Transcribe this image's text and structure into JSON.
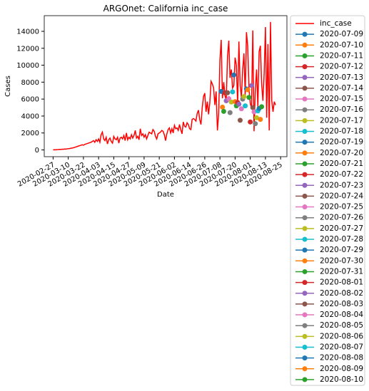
{
  "chart_data": {
    "type": "line",
    "title": "ARGOnet: California inc_case",
    "x_label": "Date",
    "y_label": "Cases",
    "xlim": [
      "2020-02-20",
      "2020-08-30"
    ],
    "xticks": [
      "2020-02-27",
      "2020-03-10",
      "2020-03-22",
      "2020-04-03",
      "2020-04-15",
      "2020-04-27",
      "2020-05-09",
      "2020-05-21",
      "2020-06-02",
      "2020-06-14",
      "2020-06-26",
      "2020-07-08",
      "2020-07-20",
      "2020-08-01",
      "2020-08-13",
      "2020-08-25"
    ],
    "ylim": [
      -800,
      15850
    ],
    "yticks": [
      0,
      2000,
      4000,
      6000,
      8000,
      10000,
      12000,
      14000
    ],
    "grid": false,
    "legend": "outside upper right",
    "series": [
      {
        "name": "inc_case",
        "color": "#ff0000",
        "x": [
          "2020-02-27",
          "2020-02-28",
          "2020-02-29",
          "2020-03-01",
          "2020-03-02",
          "2020-03-03",
          "2020-03-04",
          "2020-03-05",
          "2020-03-06",
          "2020-03-07",
          "2020-03-08",
          "2020-03-09",
          "2020-03-10",
          "2020-03-11",
          "2020-03-12",
          "2020-03-13",
          "2020-03-14",
          "2020-03-15",
          "2020-03-16",
          "2020-03-17",
          "2020-03-18",
          "2020-03-19",
          "2020-03-20",
          "2020-03-21",
          "2020-03-22",
          "2020-03-23",
          "2020-03-24",
          "2020-03-25",
          "2020-03-26",
          "2020-03-27",
          "2020-03-28",
          "2020-03-29",
          "2020-03-30",
          "2020-03-31",
          "2020-04-01",
          "2020-04-02",
          "2020-04-03",
          "2020-04-04",
          "2020-04-05",
          "2020-04-06",
          "2020-04-07",
          "2020-04-08",
          "2020-04-09",
          "2020-04-10",
          "2020-04-11",
          "2020-04-12",
          "2020-04-13",
          "2020-04-14",
          "2020-04-15",
          "2020-04-16",
          "2020-04-17",
          "2020-04-18",
          "2020-04-19",
          "2020-04-20",
          "2020-04-21",
          "2020-04-22",
          "2020-04-23",
          "2020-04-24",
          "2020-04-25",
          "2020-04-26",
          "2020-04-27",
          "2020-04-28",
          "2020-04-29",
          "2020-04-30",
          "2020-05-01",
          "2020-05-02",
          "2020-05-03",
          "2020-05-04",
          "2020-05-05",
          "2020-05-06",
          "2020-05-07",
          "2020-05-08",
          "2020-05-09",
          "2020-05-10",
          "2020-05-11",
          "2020-05-12",
          "2020-05-13",
          "2020-05-14",
          "2020-05-15",
          "2020-05-16",
          "2020-05-17",
          "2020-05-18",
          "2020-05-19",
          "2020-05-20",
          "2020-05-21",
          "2020-05-22",
          "2020-05-23",
          "2020-05-24",
          "2020-05-25",
          "2020-05-26",
          "2020-05-27",
          "2020-05-28",
          "2020-05-29",
          "2020-05-30",
          "2020-05-31",
          "2020-06-01",
          "2020-06-02",
          "2020-06-03",
          "2020-06-04",
          "2020-06-05",
          "2020-06-06",
          "2020-06-07",
          "2020-06-08",
          "2020-06-09",
          "2020-06-10",
          "2020-06-11",
          "2020-06-12",
          "2020-06-13",
          "2020-06-14",
          "2020-06-15",
          "2020-06-16",
          "2020-06-17",
          "2020-06-18",
          "2020-06-19",
          "2020-06-20",
          "2020-06-21",
          "2020-06-22",
          "2020-06-23",
          "2020-06-24",
          "2020-06-25",
          "2020-06-26",
          "2020-06-27",
          "2020-06-28",
          "2020-06-29",
          "2020-06-30",
          "2020-07-01",
          "2020-07-02",
          "2020-07-03",
          "2020-07-04",
          "2020-07-05",
          "2020-07-06",
          "2020-07-07",
          "2020-07-08",
          "2020-07-09",
          "2020-07-10",
          "2020-07-11",
          "2020-07-12",
          "2020-07-13",
          "2020-07-14",
          "2020-07-15",
          "2020-07-16",
          "2020-07-17",
          "2020-07-18",
          "2020-07-19",
          "2020-07-20",
          "2020-07-21",
          "2020-07-22",
          "2020-07-23",
          "2020-07-24",
          "2020-07-25",
          "2020-07-26",
          "2020-07-27",
          "2020-07-28",
          "2020-07-29",
          "2020-07-30",
          "2020-07-31",
          "2020-08-01",
          "2020-08-02",
          "2020-08-03",
          "2020-08-04",
          "2020-08-05",
          "2020-08-06",
          "2020-08-07",
          "2020-08-08",
          "2020-08-09",
          "2020-08-10",
          "2020-08-11",
          "2020-08-12",
          "2020-08-13",
          "2020-08-14",
          "2020-08-15",
          "2020-08-16",
          "2020-08-17",
          "2020-08-18",
          "2020-08-19",
          "2020-08-20",
          "2020-08-21"
        ],
        "values": [
          0,
          20,
          10,
          30,
          40,
          60,
          50,
          80,
          70,
          100,
          90,
          120,
          150,
          160,
          200,
          220,
          250,
          300,
          350,
          400,
          450,
          500,
          550,
          600,
          550,
          650,
          700,
          750,
          800,
          850,
          900,
          1000,
          1100,
          900,
          1200,
          1000,
          1300,
          900,
          1800,
          2100,
          1300,
          1100,
          1500,
          700,
          1200,
          1400,
          1000,
          800,
          1600,
          1300,
          1200,
          1500,
          800,
          1400,
          1500,
          1300,
          1700,
          1100,
          2000,
          1200,
          1500,
          1300,
          1800,
          1400,
          1700,
          2300,
          1400,
          1600,
          1200,
          2500,
          1700,
          1900,
          1500,
          1800,
          1300,
          1700,
          2100,
          2000,
          1900,
          2400,
          2200,
          1600,
          1300,
          1900,
          2000,
          2100,
          2300,
          2200,
          1800,
          1100,
          1900,
          2400,
          2600,
          2000,
          2500,
          2000,
          2900,
          2500,
          2600,
          2300,
          3000,
          2400,
          1900,
          3300,
          2800,
          2700,
          3200,
          3000,
          2500,
          2400,
          3600,
          3700,
          3600,
          3400,
          4300,
          4700,
          3600,
          3000,
          5000,
          6300,
          6700,
          4500,
          5700,
          4200,
          5600,
          8100,
          7800,
          7300,
          5300,
          6900,
          2300,
          4300,
          10600,
          13000,
          6100,
          8000,
          6400,
          5900,
          11000,
          12900,
          8500,
          9500,
          7300,
          7600,
          10900,
          10000,
          5300,
          12800,
          7600,
          6200,
          9500,
          11400,
          6400,
          13900,
          12200,
          7200,
          5500,
          4900,
          14100,
          2200,
          7000,
          9500,
          5100,
          11600,
          12300,
          7800,
          5800,
          9000,
          14500,
          3800,
          12500,
          2300,
          15100,
          5800,
          4500,
          5700,
          5300
        ]
      },
      {
        "name": "2020-07-09",
        "color": "#1f77b4",
        "marker": "o",
        "x": [
          "2020-07-09"
        ],
        "values": [
          6900
        ]
      },
      {
        "name": "2020-07-10",
        "color": "#ff7f0e",
        "marker": "o",
        "x": [
          "2020-07-10"
        ],
        "values": [
          5050
        ]
      },
      {
        "name": "2020-07-11",
        "color": "#2ca02c",
        "marker": "o",
        "x": [
          "2020-07-11"
        ],
        "values": [
          4550
        ]
      },
      {
        "name": "2020-07-12",
        "color": "#d62728",
        "marker": "o",
        "x": [
          "2020-07-12"
        ],
        "values": [
          6750
        ]
      },
      {
        "name": "2020-07-13",
        "color": "#9467bd",
        "marker": "o",
        "x": [
          "2020-07-13"
        ],
        "values": [
          5800
        ]
      },
      {
        "name": "2020-07-14",
        "color": "#8c564b",
        "marker": "o",
        "x": [
          "2020-07-14"
        ],
        "values": [
          6750
        ]
      },
      {
        "name": "2020-07-15",
        "color": "#e377c2",
        "marker": "o",
        "x": [
          "2020-07-15"
        ],
        "values": [
          6050
        ]
      },
      {
        "name": "2020-07-16",
        "color": "#7f7f7f",
        "marker": "o",
        "x": [
          "2020-07-16"
        ],
        "values": [
          4400
        ]
      },
      {
        "name": "2020-07-17",
        "color": "#bcbd22",
        "marker": "o",
        "x": [
          "2020-07-17"
        ],
        "values": [
          5650
        ]
      },
      {
        "name": "2020-07-18",
        "color": "#17becf",
        "marker": "o",
        "x": [
          "2020-07-18"
        ],
        "values": [
          6850
        ]
      },
      {
        "name": "2020-07-19",
        "color": "#1f77b4",
        "marker": "o",
        "x": [
          "2020-07-19"
        ],
        "values": [
          8850
        ]
      },
      {
        "name": "2020-07-20",
        "color": "#ff7f0e",
        "marker": "o",
        "x": [
          "2020-07-20"
        ],
        "values": [
          5700
        ]
      },
      {
        "name": "2020-07-21",
        "color": "#2ca02c",
        "marker": "o",
        "x": [
          "2020-07-21"
        ],
        "values": [
          5200
        ]
      },
      {
        "name": "2020-07-22",
        "color": "#d62728",
        "marker": "o",
        "x": [
          "2020-07-22"
        ],
        "values": [
          5600
        ]
      },
      {
        "name": "2020-07-23",
        "color": "#9467bd",
        "marker": "o",
        "x": [
          "2020-07-23"
        ],
        "values": [
          5400
        ]
      },
      {
        "name": "2020-07-24",
        "color": "#8c564b",
        "marker": "o",
        "x": [
          "2020-07-24"
        ],
        "values": [
          3500
        ]
      },
      {
        "name": "2020-07-25",
        "color": "#e377c2",
        "marker": "o",
        "x": [
          "2020-07-25"
        ],
        "values": [
          4850
        ]
      },
      {
        "name": "2020-07-26",
        "color": "#7f7f7f",
        "marker": "o",
        "x": [
          "2020-07-26"
        ],
        "values": [
          6000
        ]
      },
      {
        "name": "2020-07-27",
        "color": "#bcbd22",
        "marker": "o",
        "x": [
          "2020-07-27"
        ],
        "values": [
          6300
        ]
      },
      {
        "name": "2020-07-28",
        "color": "#17becf",
        "marker": "o",
        "x": [
          "2020-07-28"
        ],
        "values": [
          5200
        ]
      },
      {
        "name": "2020-07-29",
        "color": "#1f77b4",
        "marker": "o",
        "x": [
          "2020-07-29"
        ],
        "values": [
          7200
        ]
      },
      {
        "name": "2020-07-30",
        "color": "#ff7f0e",
        "marker": "o",
        "x": [
          "2020-07-30"
        ],
        "values": [
          7100
        ]
      },
      {
        "name": "2020-07-31",
        "color": "#2ca02c",
        "marker": "o",
        "x": [
          "2020-07-31"
        ],
        "values": [
          6200
        ]
      },
      {
        "name": "2020-08-01",
        "color": "#d62728",
        "marker": "o",
        "x": [
          "2020-08-01"
        ],
        "values": [
          3300
        ]
      },
      {
        "name": "2020-08-02",
        "color": "#9467bd",
        "marker": "o",
        "x": [
          "2020-08-02"
        ],
        "values": [
          7600
        ]
      },
      {
        "name": "2020-08-03",
        "color": "#8c564b",
        "marker": "o",
        "x": [
          "2020-08-03"
        ],
        "values": [
          5000
        ]
      },
      {
        "name": "2020-08-04",
        "color": "#e377c2",
        "marker": "o",
        "x": [
          "2020-08-04"
        ],
        "values": [
          4500
        ]
      },
      {
        "name": "2020-08-05",
        "color": "#7f7f7f",
        "marker": "o",
        "x": [
          "2020-08-05"
        ],
        "values": [
          3100
        ]
      },
      {
        "name": "2020-08-06",
        "color": "#bcbd22",
        "marker": "o",
        "x": [
          "2020-08-06"
        ],
        "values": [
          3800
        ]
      },
      {
        "name": "2020-08-07",
        "color": "#17becf",
        "marker": "o",
        "x": [
          "2020-08-07"
        ],
        "values": [
          4600
        ]
      },
      {
        "name": "2020-08-08",
        "color": "#1f77b4",
        "marker": "o",
        "x": [
          "2020-08-08"
        ],
        "values": [
          4900
        ]
      },
      {
        "name": "2020-08-09",
        "color": "#ff7f0e",
        "marker": "o",
        "x": [
          "2020-08-09"
        ],
        "values": [
          3600
        ]
      },
      {
        "name": "2020-08-10",
        "color": "#2ca02c",
        "marker": "o",
        "x": [
          "2020-08-10"
        ],
        "values": [
          5100
        ]
      }
    ]
  }
}
